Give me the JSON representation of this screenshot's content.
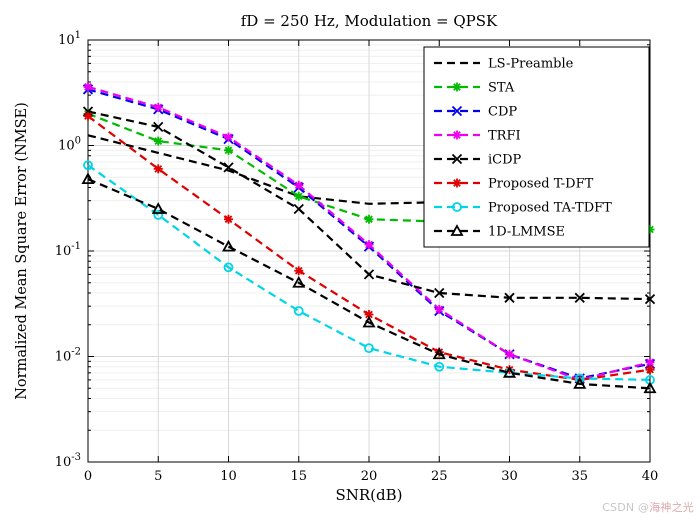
{
  "watermark": {
    "prefix": "CSDN @",
    "name": "海神之光"
  },
  "chart_data": {
    "type": "line",
    "title": "fD = 250 Hz, Modulation = QPSK",
    "xlabel": "SNR(dB)",
    "ylabel": "Normalized Mean Square Error (NMSE)",
    "x": [
      0,
      5,
      10,
      15,
      20,
      25,
      30,
      35,
      40
    ],
    "xlim": [
      0,
      40
    ],
    "x_ticks": [
      0,
      5,
      10,
      15,
      20,
      25,
      30,
      35,
      40
    ],
    "y_scale": "log",
    "ylim": [
      0.001,
      10
    ],
    "y_tick_exponents": [
      -3,
      -2,
      -1,
      0,
      1
    ],
    "grid": true,
    "legend_position": "top-right",
    "line_style": "dashed",
    "series": [
      {
        "name": "LS-Preamble",
        "color": "#000000",
        "marker": "none",
        "values": [
          1.25,
          0.85,
          0.58,
          0.33,
          0.28,
          0.29,
          0.28,
          0.28,
          0.28
        ]
      },
      {
        "name": "STA",
        "color": "#00bb00",
        "marker": "asterisk",
        "values": [
          2.0,
          1.1,
          0.9,
          0.33,
          0.2,
          0.19,
          0.18,
          0.18,
          0.16
        ]
      },
      {
        "name": "CDP",
        "color": "#0000ee",
        "marker": "x",
        "values": [
          3.4,
          2.2,
          1.15,
          0.4,
          0.11,
          0.027,
          0.0105,
          0.0062,
          0.0085
        ]
      },
      {
        "name": "TRFI",
        "color": "#ee00ee",
        "marker": "asterisk",
        "values": [
          3.6,
          2.3,
          1.2,
          0.42,
          0.115,
          0.028,
          0.0105,
          0.006,
          0.0088
        ]
      },
      {
        "name": "iCDP",
        "color": "#000000",
        "marker": "x",
        "values": [
          2.1,
          1.5,
          0.62,
          0.25,
          0.06,
          0.04,
          0.036,
          0.036,
          0.035
        ]
      },
      {
        "name": "Proposed T-DFT",
        "color": "#e00000",
        "marker": "asterisk",
        "values": [
          1.9,
          0.6,
          0.2,
          0.065,
          0.025,
          0.011,
          0.0075,
          0.006,
          0.0075
        ]
      },
      {
        "name": "Proposed TA-TDFT",
        "color": "#00d5e8",
        "marker": "circle",
        "values": [
          0.65,
          0.22,
          0.07,
          0.027,
          0.012,
          0.008,
          0.007,
          0.0062,
          0.006
        ]
      },
      {
        "name": "1D-LMMSE",
        "color": "#000000",
        "marker": "triangle",
        "values": [
          0.48,
          0.25,
          0.11,
          0.05,
          0.021,
          0.0105,
          0.007,
          0.0055,
          0.005
        ]
      }
    ]
  }
}
